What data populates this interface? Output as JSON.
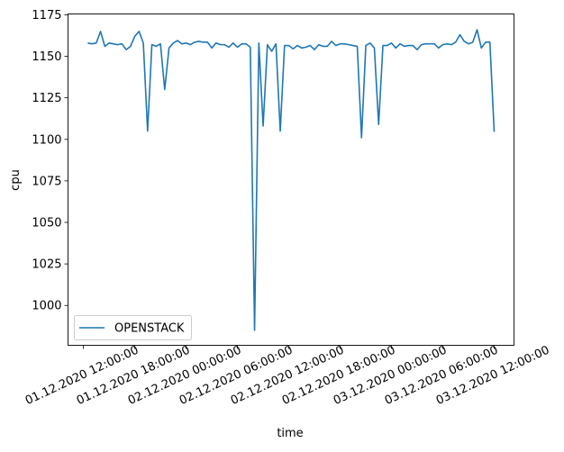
{
  "chart_data": {
    "type": "line",
    "title": "",
    "xlabel": "time",
    "ylabel": "cpu",
    "ylim": [
      976,
      1175.5
    ],
    "xlim": [
      "2020-12-01T10:12",
      "2020-12-03T14:19"
    ],
    "grid": false,
    "legend_placement": "lower-left",
    "yticks": [
      1000,
      1025,
      1050,
      1075,
      1100,
      1125,
      1150,
      1175
    ],
    "xticks": [
      {
        "t": "2020-12-01T12:00",
        "label": "01.12.2020 12:00:00"
      },
      {
        "t": "2020-12-01T18:00",
        "label": "01.12.2020 18:00:00"
      },
      {
        "t": "2020-12-02T00:00",
        "label": "02.12.2020 00:00:00"
      },
      {
        "t": "2020-12-02T06:00",
        "label": "02.12.2020 06:00:00"
      },
      {
        "t": "2020-12-02T12:00",
        "label": "02.12.2020 12:00:00"
      },
      {
        "t": "2020-12-02T18:00",
        "label": "02.12.2020 18:00:00"
      },
      {
        "t": "2020-12-03T00:00",
        "label": "03.12.2020 00:00:00"
      },
      {
        "t": "2020-12-03T06:00",
        "label": "03.12.2020 06:00:00"
      },
      {
        "t": "2020-12-03T12:00",
        "label": "03.12.2020 12:00:00"
      }
    ],
    "series": [
      {
        "name": "OPENSTACK",
        "color": "#1f77b4",
        "x": [
          "2020-12-01T12:30",
          "2020-12-01T13:00",
          "2020-12-01T13:30",
          "2020-12-01T14:00",
          "2020-12-01T14:30",
          "2020-12-01T15:00",
          "2020-12-01T15:30",
          "2020-12-01T16:00",
          "2020-12-01T16:30",
          "2020-12-01T17:00",
          "2020-12-01T17:30",
          "2020-12-01T18:00",
          "2020-12-01T18:30",
          "2020-12-01T19:00",
          "2020-12-01T19:30",
          "2020-12-01T20:00",
          "2020-12-01T20:30",
          "2020-12-01T21:00",
          "2020-12-01T21:30",
          "2020-12-01T22:00",
          "2020-12-01T22:30",
          "2020-12-01T23:00",
          "2020-12-01T23:30",
          "2020-12-02T00:00",
          "2020-12-02T00:30",
          "2020-12-02T01:00",
          "2020-12-02T01:30",
          "2020-12-02T02:00",
          "2020-12-02T02:30",
          "2020-12-02T03:00",
          "2020-12-02T03:30",
          "2020-12-02T04:00",
          "2020-12-02T04:30",
          "2020-12-02T05:00",
          "2020-12-02T05:30",
          "2020-12-02T06:00",
          "2020-12-02T06:30",
          "2020-12-02T07:00",
          "2020-12-02T07:30",
          "2020-12-02T08:00",
          "2020-12-02T08:30",
          "2020-12-02T09:00",
          "2020-12-02T09:30",
          "2020-12-02T10:00",
          "2020-12-02T10:30",
          "2020-12-02T11:00",
          "2020-12-02T11:30",
          "2020-12-02T12:00",
          "2020-12-02T12:30",
          "2020-12-02T13:00",
          "2020-12-02T13:30",
          "2020-12-02T14:00",
          "2020-12-02T14:30",
          "2020-12-02T15:00",
          "2020-12-02T15:30",
          "2020-12-02T16:00",
          "2020-12-02T16:30",
          "2020-12-02T17:00",
          "2020-12-02T17:30",
          "2020-12-02T18:00",
          "2020-12-02T18:30",
          "2020-12-02T19:00",
          "2020-12-02T19:30",
          "2020-12-02T20:00",
          "2020-12-02T20:30",
          "2020-12-02T21:00",
          "2020-12-02T21:30",
          "2020-12-02T22:00",
          "2020-12-02T22:30",
          "2020-12-02T23:00",
          "2020-12-02T23:30",
          "2020-12-03T00:00",
          "2020-12-03T00:30",
          "2020-12-03T01:00",
          "2020-12-03T01:30",
          "2020-12-03T02:00",
          "2020-12-03T02:30",
          "2020-12-03T03:00",
          "2020-12-03T03:30",
          "2020-12-03T04:00",
          "2020-12-03T04:30",
          "2020-12-03T05:00",
          "2020-12-03T05:30",
          "2020-12-03T06:00",
          "2020-12-03T06:30",
          "2020-12-03T07:00",
          "2020-12-03T07:30",
          "2020-12-03T08:00",
          "2020-12-03T08:30",
          "2020-12-03T09:00",
          "2020-12-03T09:30",
          "2020-12-03T10:00",
          "2020-12-03T10:30",
          "2020-12-03T11:00",
          "2020-12-03T11:30",
          "2020-12-03T12:00"
        ],
        "y": [
          1158,
          1157.5,
          1158,
          1165,
          1156,
          1158,
          1157.5,
          1157,
          1157.5,
          1154,
          1156,
          1162,
          1165,
          1158,
          1105,
          1157,
          1156,
          1157.5,
          1130,
          1155,
          1158,
          1159.5,
          1157.5,
          1158,
          1157,
          1158.5,
          1159,
          1158.5,
          1158.5,
          1155,
          1158,
          1157,
          1157,
          1155.5,
          1158,
          1155.5,
          1157.5,
          1157.5,
          1155.5,
          985,
          1158,
          1108,
          1157,
          1153,
          1157.5,
          1105,
          1156.5,
          1156.5,
          1154.5,
          1156.5,
          1155,
          1155.5,
          1156.5,
          1154,
          1157,
          1156,
          1156,
          1159,
          1156.5,
          1157.5,
          1157.5,
          1157,
          1156.5,
          1156,
          1101,
          1156.5,
          1158,
          1155,
          1109,
          1156.5,
          1156.5,
          1158,
          1155,
          1157.5,
          1156,
          1156.5,
          1156.5,
          1154,
          1157,
          1157.5,
          1157.5,
          1157.5,
          1155,
          1157,
          1157.5,
          1157,
          1158.5,
          1163,
          1159,
          1157.5,
          1158.5,
          1166,
          1155,
          1158.5,
          1158.5,
          1104.5
        ]
      }
    ]
  }
}
